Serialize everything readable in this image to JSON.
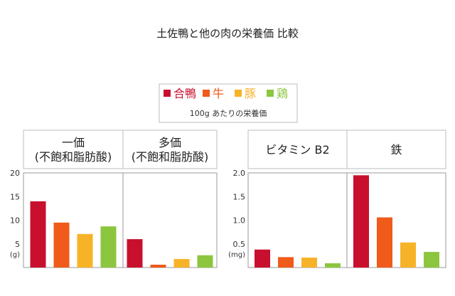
{
  "title": "土佐鴨と他の肉の栄養価 比較",
  "legend": {
    "items": [
      {
        "label": "合鴨",
        "color": "#c8102e"
      },
      {
        "label": "牛",
        "color": "#f05a1a"
      },
      {
        "label": "豚",
        "color": "#f7b328"
      },
      {
        "label": "鶏",
        "color": "#8cc63f"
      }
    ],
    "note": "100g あたりの栄養価"
  },
  "chart_data": [
    {
      "type": "bar",
      "unit": "(g)",
      "ylim": [
        0,
        20
      ],
      "yticks": [
        "20",
        "15",
        "10",
        "5"
      ],
      "series_names": [
        "合鴨",
        "牛",
        "豚",
        "鶏"
      ],
      "groups": [
        {
          "label": "一価\n(不飽和脂肪酸)",
          "values": [
            14.0,
            9.5,
            7.1,
            8.7
          ]
        },
        {
          "label": "多価\n(不飽和脂肪酸)",
          "values": [
            6.0,
            0.6,
            1.8,
            2.6
          ]
        }
      ]
    },
    {
      "type": "bar",
      "unit": "(mg)",
      "ylim": [
        0,
        2.0
      ],
      "yticks": [
        "2.0",
        "1.5",
        "1.0",
        "0.5"
      ],
      "series_names": [
        "合鴨",
        "牛",
        "豚",
        "鶏"
      ],
      "groups": [
        {
          "label": "ビタミン B2",
          "values": [
            0.38,
            0.22,
            0.21,
            0.09
          ]
        },
        {
          "label": "鉄",
          "values": [
            1.95,
            1.06,
            0.53,
            0.33
          ]
        }
      ]
    }
  ]
}
